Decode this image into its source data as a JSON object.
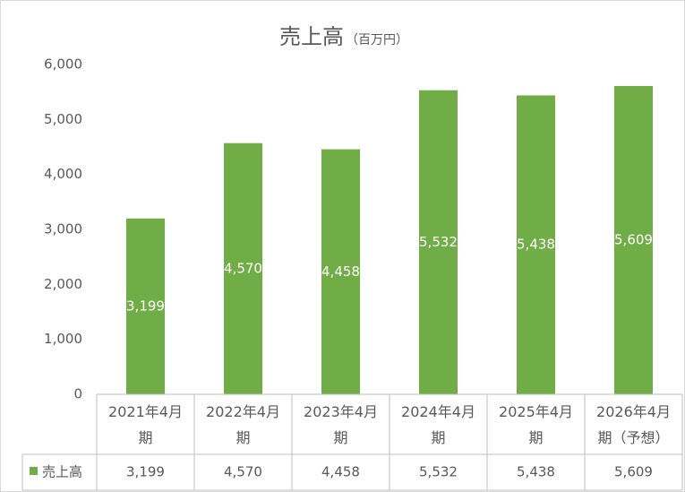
{
  "chart_data": {
    "type": "bar",
    "title": "売上高",
    "subtitle": "（百万円）",
    "categories": [
      "2021年4月期",
      "2022年4月期",
      "2023年4月期",
      "2024年4月期",
      "2025年4月期",
      "2026年4月期（予想）"
    ],
    "series": [
      {
        "name": "売上高",
        "color": "#70ad47",
        "values": [
          3199,
          4570,
          4458,
          5532,
          5438,
          5609
        ],
        "value_labels": [
          "3,199",
          "4,570",
          "4,458",
          "5,532",
          "5,438",
          "5,609"
        ]
      }
    ],
    "ylim": [
      0,
      6000
    ],
    "yticks": [
      0,
      {
        "value": 1000,
        "label": "1,000"
      },
      {
        "value": 2000,
        "label": "2,000"
      },
      {
        "value": 3000,
        "label": "3,000"
      },
      {
        "value": 4000,
        "label": "4,000"
      },
      {
        "value": 5000,
        "label": "5,000"
      },
      {
        "value": 6000,
        "label": "6,000"
      }
    ],
    "grid": false,
    "data_table": true
  }
}
